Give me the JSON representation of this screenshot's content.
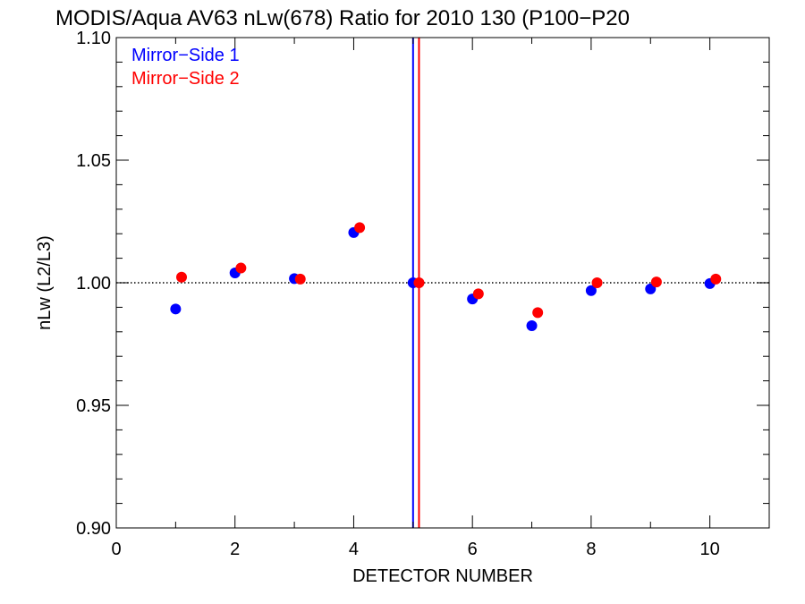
{
  "chart_data": {
    "type": "scatter",
    "title": "MODIS/Aqua AV63 nLw(678) Ratio for 2010 130 (P100−P20",
    "xlabel": "DETECTOR NUMBER",
    "ylabel": "nLw (L2/L3)",
    "xlim": [
      0,
      11
    ],
    "ylim": [
      0.9,
      1.1
    ],
    "x_ticks": [
      0,
      2,
      4,
      6,
      8,
      10
    ],
    "x_tick_labels": [
      "0",
      "2",
      "4",
      "6",
      "8",
      "10"
    ],
    "y_ticks": [
      0.9,
      0.95,
      1.0,
      1.05,
      1.1
    ],
    "y_tick_labels": [
      "0.90",
      "0.95",
      "1.00",
      "1.05",
      "1.10"
    ],
    "reference_line_y": 1.0,
    "vertical_lines": [
      {
        "x": 5.0,
        "color": "#0000ff"
      },
      {
        "x": 5.1,
        "color": "#ff0000"
      }
    ],
    "legend_placement": "top-left",
    "series": [
      {
        "name": "Mirror−Side 1",
        "color": "#0000ff",
        "x": [
          1,
          2,
          3,
          4,
          5,
          6,
          7,
          8,
          9,
          10
        ],
        "y": [
          0.9893,
          1.004,
          1.0017,
          1.0205,
          1.0,
          0.9934,
          0.9825,
          0.9968,
          0.9975,
          0.9997
        ]
      },
      {
        "name": "Mirror−Side 2",
        "color": "#ff0000",
        "x": [
          1.1,
          2.1,
          3.1,
          4.1,
          5.1,
          6.1,
          7.1,
          8.1,
          9.1,
          10.1
        ],
        "y": [
          1.0023,
          1.006,
          1.0015,
          1.0225,
          1.0,
          0.9955,
          0.9878,
          1.0,
          1.0003,
          1.0015
        ]
      }
    ]
  }
}
